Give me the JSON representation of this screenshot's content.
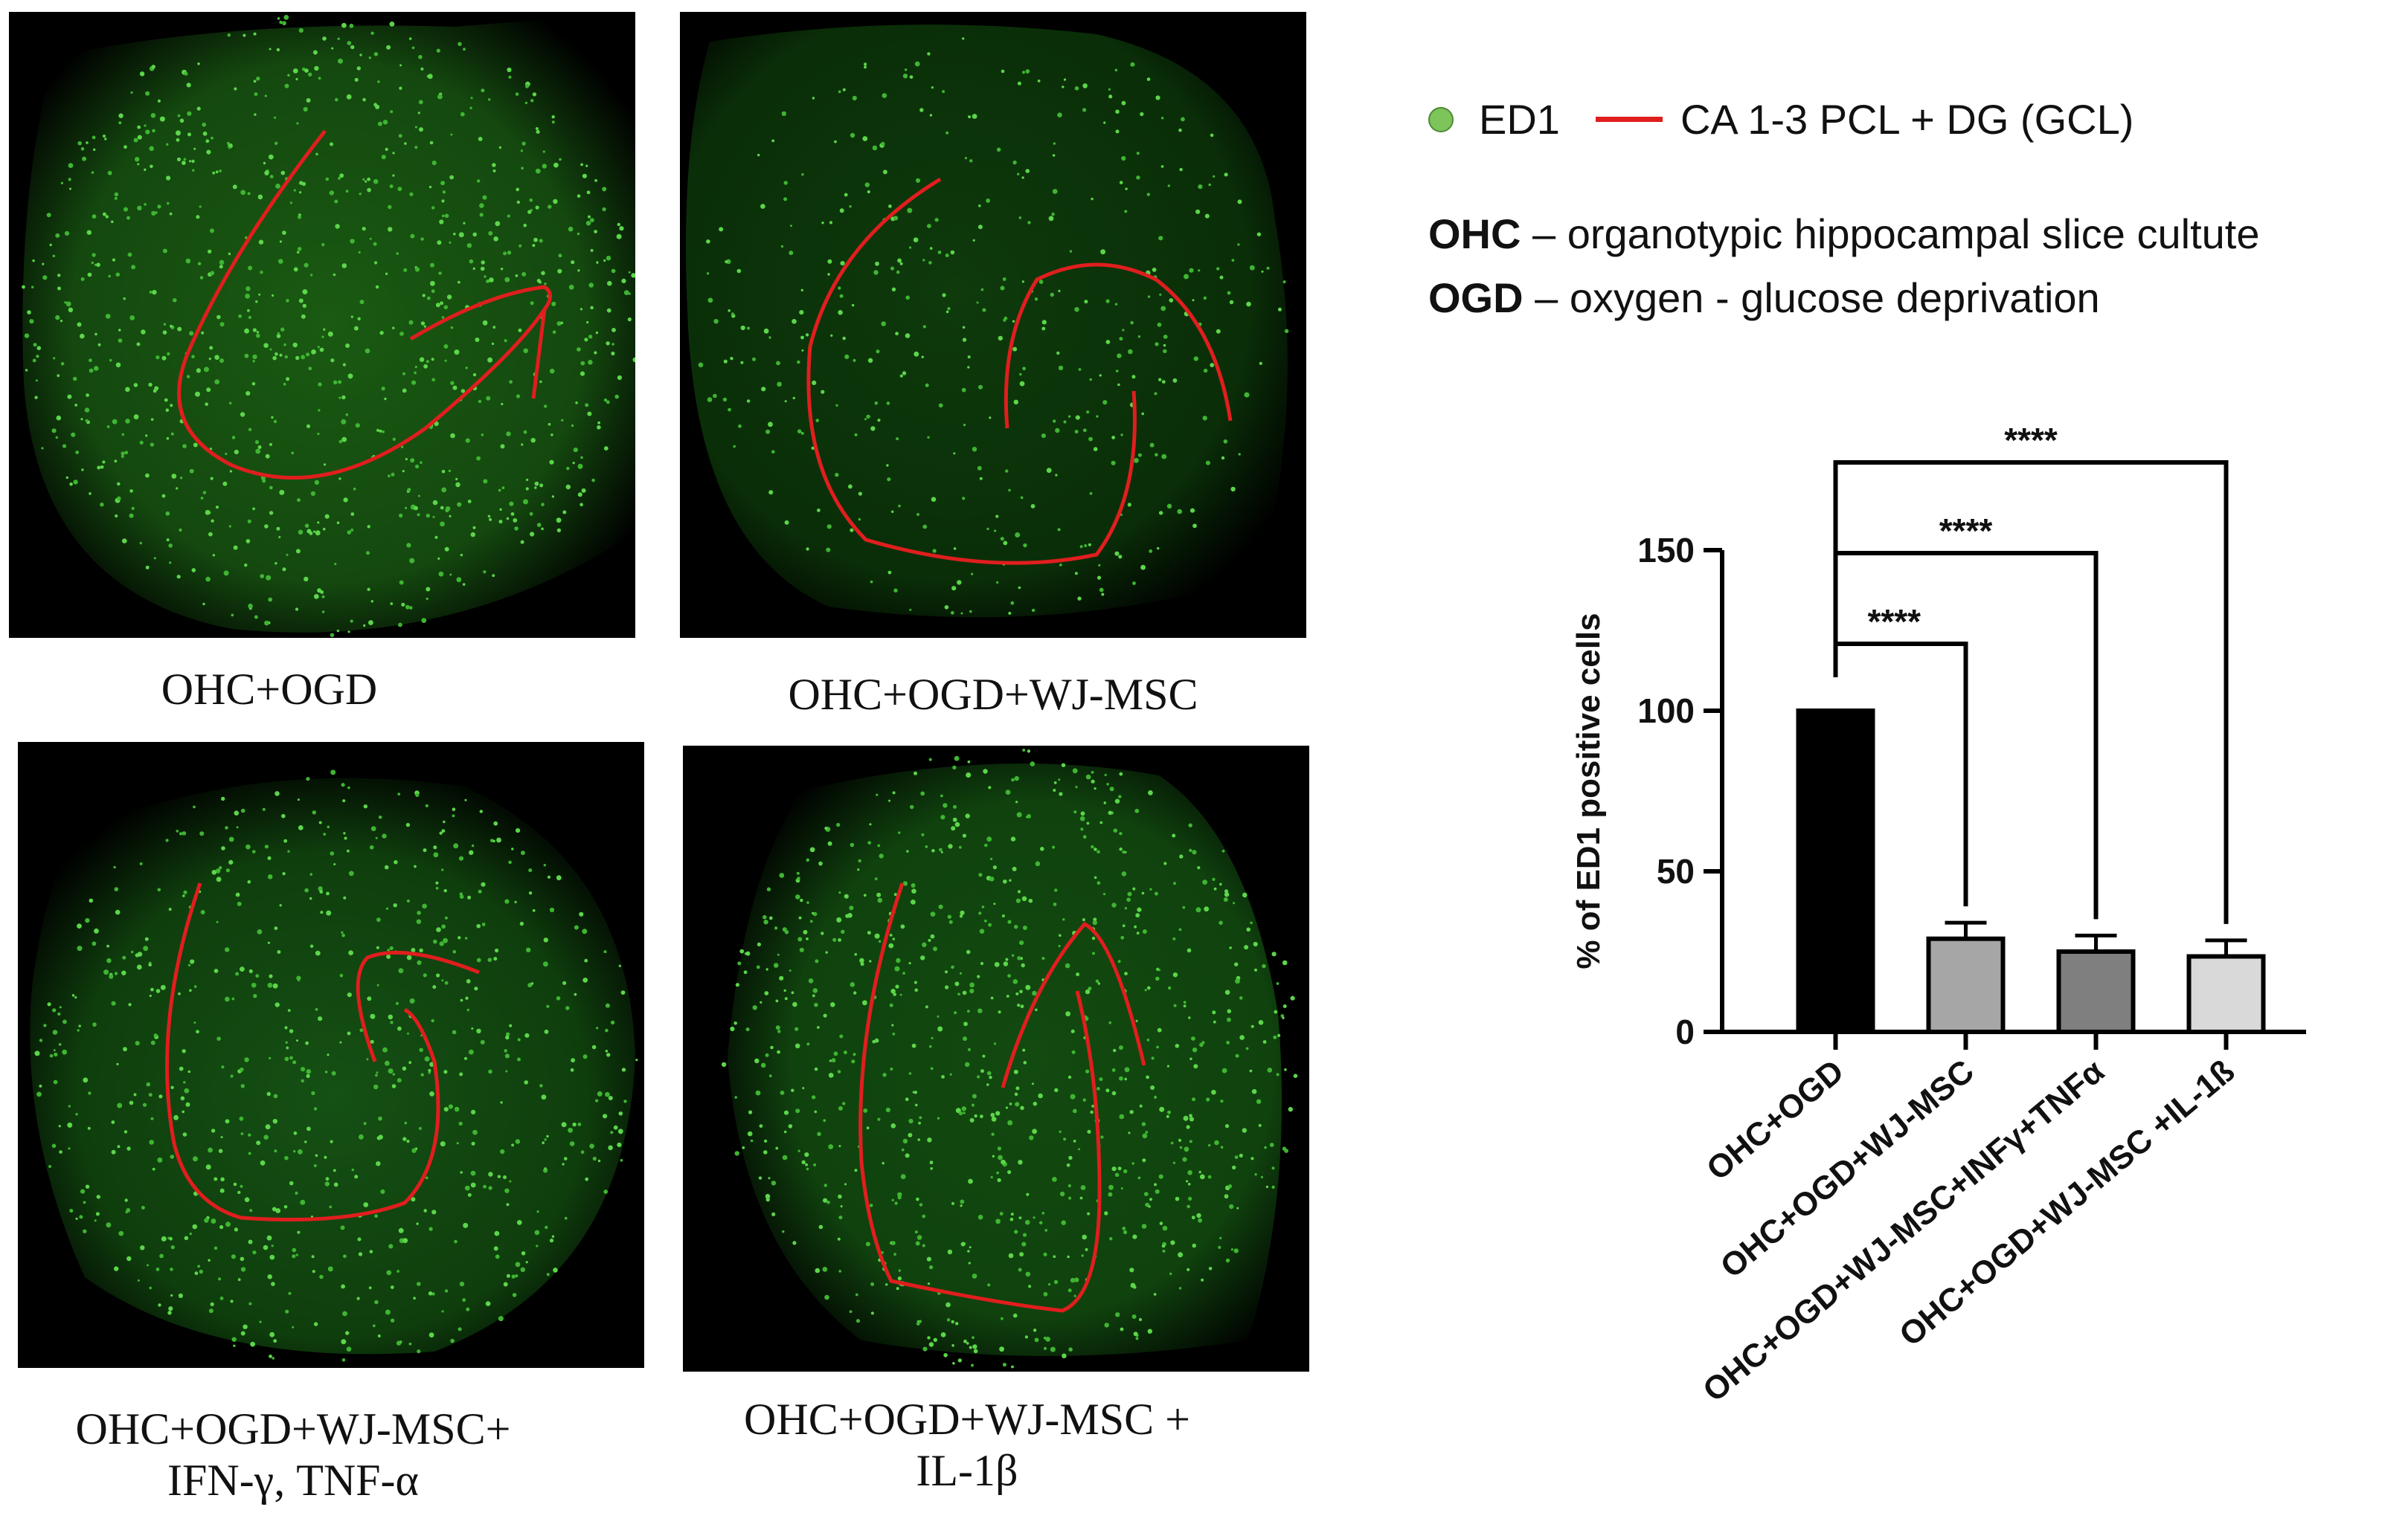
{
  "panels": [
    {
      "caption_lines": [
        "OHC+OGD"
      ]
    },
    {
      "caption_lines": [
        "OHC+OGD+WJ-MSC"
      ]
    },
    {
      "caption_lines": [
        "OHC+OGD+WJ-MSC+",
        "IFN-γ, TNF-α"
      ]
    },
    {
      "caption_lines": [
        "OHC+OGD+WJ-MSC +",
        "IL-1β"
      ]
    }
  ],
  "legend": {
    "marker_label": "ED1",
    "marker_color": "#7dc55a",
    "line_label": "CA 1-3 PCL + DG (GCL)",
    "line_color": "#e01e1e"
  },
  "definitions": [
    {
      "term": "OHC",
      "text": " – organotypic hippocampal slice cultute"
    },
    {
      "term": "OGD",
      "text": " – oxygen - glucose deprivation"
    }
  ],
  "chart_data": {
    "type": "bar",
    "categories": [
      "OHC+OGD",
      "OHC+OGD+WJ-MSC",
      "OHC+OGD+WJ-MSC+INFγ+TNFα",
      "OHC+OGD+WJ-MSC +IL-1ß"
    ],
    "values": [
      100,
      29,
      25,
      23.5
    ],
    "errors": [
      0,
      5,
      5,
      5
    ],
    "bar_colors": [
      "#000000",
      "#a6a6a6",
      "#7f7f7f",
      "#d9d9d9"
    ],
    "ylabel": "% of ED1 positive cells",
    "ylim": [
      0,
      150
    ],
    "yticks": [
      0,
      50,
      100,
      150
    ],
    "significance": [
      {
        "from": 0,
        "to": 1,
        "label": "****"
      },
      {
        "from": 0,
        "to": 2,
        "label": "****"
      },
      {
        "from": 0,
        "to": 3,
        "label": "****"
      }
    ]
  }
}
